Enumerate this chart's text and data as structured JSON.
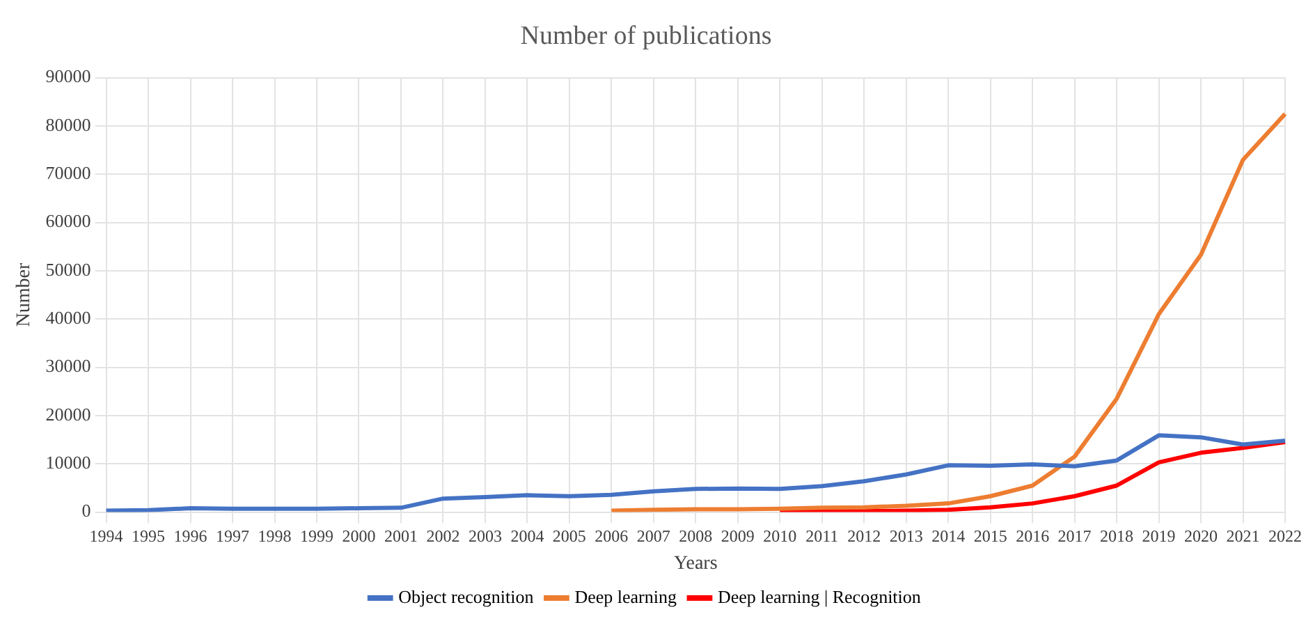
{
  "chart_data": {
    "type": "line",
    "title": "Number of publications",
    "xlabel": "Years",
    "ylabel": "Number",
    "categories": [
      "1994",
      "1995",
      "1996",
      "1997",
      "1998",
      "1999",
      "2000",
      "2001",
      "2002",
      "2003",
      "2004",
      "2005",
      "2006",
      "2007",
      "2008",
      "2009",
      "2010",
      "2011",
      "2012",
      "2013",
      "2014",
      "2015",
      "2016",
      "2017",
      "2018",
      "2019",
      "2020",
      "2021",
      "2022"
    ],
    "series": [
      {
        "name": "Object recognition",
        "color": "#4472c4",
        "values": [
          300,
          400,
          800,
          700,
          700,
          700,
          800,
          900,
          2800,
          3100,
          3500,
          3300,
          3600,
          4300,
          4800,
          4900,
          4800,
          5400,
          6400,
          7800,
          9700,
          9600,
          9900,
          9500,
          10700,
          15900,
          15500,
          14000,
          14800
        ]
      },
      {
        "name": "Deep learning",
        "color": "#ed7d31",
        "values": [
          null,
          null,
          null,
          null,
          null,
          null,
          null,
          null,
          null,
          null,
          null,
          null,
          300,
          500,
          600,
          600,
          700,
          900,
          1000,
          1300,
          1800,
          3300,
          5500,
          11500,
          23500,
          41000,
          53300,
          73000,
          82500
        ]
      },
      {
        "name": "Deep learning | Recognition",
        "color": "#ff0000",
        "values": [
          null,
          null,
          null,
          null,
          null,
          null,
          null,
          null,
          null,
          null,
          null,
          null,
          null,
          null,
          null,
          null,
          200,
          200,
          200,
          300,
          500,
          1000,
          1800,
          3300,
          5500,
          10300,
          12300,
          13300,
          14500
        ]
      }
    ],
    "ylim": [
      0,
      90000
    ],
    "yticks": [
      0,
      10000,
      20000,
      30000,
      40000,
      50000,
      60000,
      70000,
      80000,
      90000
    ],
    "grid": true,
    "legend": "bottom",
    "marker": "none",
    "line_style": "solid"
  }
}
